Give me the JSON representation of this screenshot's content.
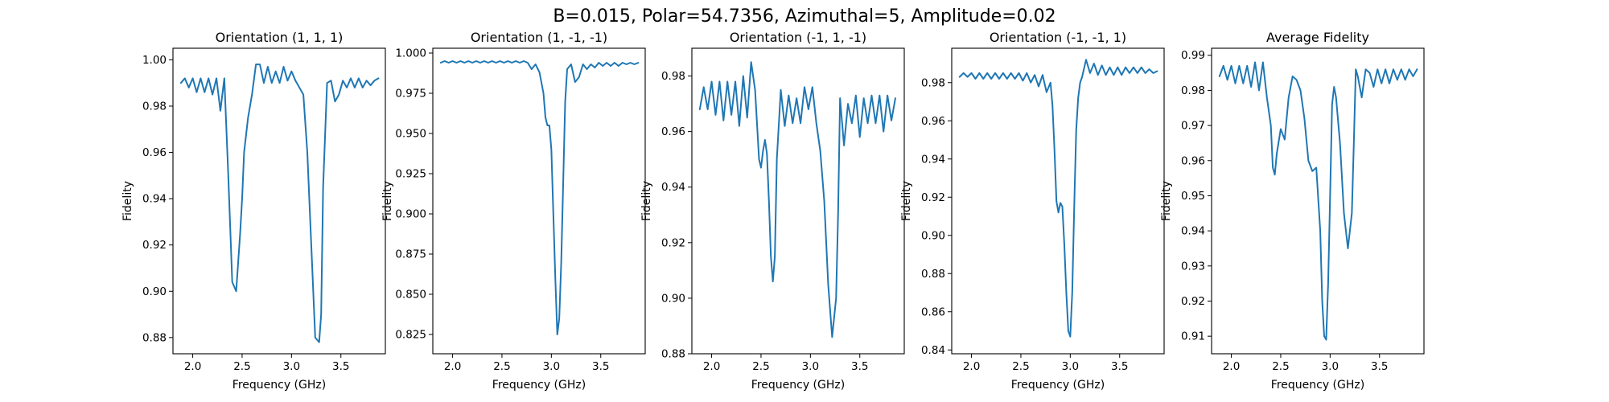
{
  "figure": {
    "suptitle": "B=0.015, Polar=54.7356, Azimuthal=5, Amplitude=0.02",
    "line_color": "#1f77b4"
  },
  "chart_data": [
    {
      "type": "line",
      "title": "Orientation (1, 1, 1)",
      "xlabel": "Frequency (GHz)",
      "ylabel": "Fidelity",
      "xlim": [
        1.8,
        3.95
      ],
      "ylim": [
        0.873,
        1.005
      ],
      "xticks": [
        "2.0",
        "2.5",
        "3.0",
        "3.5"
      ],
      "yticks": [
        "0.88",
        "0.90",
        "0.92",
        "0.94",
        "0.96",
        "0.98",
        "1.00"
      ],
      "x": [
        1.88,
        1.92,
        1.96,
        2.0,
        2.04,
        2.08,
        2.12,
        2.16,
        2.2,
        2.24,
        2.28,
        2.32,
        2.36,
        2.4,
        2.44,
        2.48,
        2.5,
        2.52,
        2.56,
        2.6,
        2.64,
        2.68,
        2.72,
        2.76,
        2.8,
        2.84,
        2.88,
        2.92,
        2.96,
        3.0,
        3.04,
        3.08,
        3.12,
        3.16,
        3.2,
        3.24,
        3.28,
        3.3,
        3.32,
        3.36,
        3.4,
        3.44,
        3.48,
        3.52,
        3.56,
        3.6,
        3.64,
        3.68,
        3.72,
        3.76,
        3.8,
        3.84,
        3.88
      ],
      "y": [
        0.99,
        0.992,
        0.988,
        0.992,
        0.986,
        0.992,
        0.986,
        0.992,
        0.985,
        0.992,
        0.978,
        0.992,
        0.95,
        0.904,
        0.9,
        0.925,
        0.94,
        0.96,
        0.975,
        0.985,
        0.998,
        0.998,
        0.99,
        0.997,
        0.99,
        0.995,
        0.99,
        0.997,
        0.991,
        0.995,
        0.991,
        0.988,
        0.985,
        0.96,
        0.92,
        0.88,
        0.878,
        0.89,
        0.945,
        0.99,
        0.991,
        0.982,
        0.985,
        0.991,
        0.988,
        0.992,
        0.988,
        0.992,
        0.988,
        0.991,
        0.989,
        0.991,
        0.992
      ]
    },
    {
      "type": "line",
      "title": "Orientation (1, -1, -1)",
      "xlabel": "Frequency (GHz)",
      "ylabel": "Fidelity",
      "xlim": [
        1.8,
        3.95
      ],
      "ylim": [
        0.813,
        1.003
      ],
      "xticks": [
        "2.0",
        "2.5",
        "3.0",
        "3.5"
      ],
      "yticks": [
        "0.825",
        "0.850",
        "0.875",
        "0.900",
        "0.925",
        "0.950",
        "0.975",
        "1.000"
      ],
      "x": [
        1.88,
        1.92,
        1.96,
        2.0,
        2.04,
        2.08,
        2.12,
        2.16,
        2.2,
        2.24,
        2.28,
        2.32,
        2.36,
        2.4,
        2.44,
        2.48,
        2.52,
        2.56,
        2.6,
        2.64,
        2.68,
        2.72,
        2.76,
        2.8,
        2.84,
        2.88,
        2.92,
        2.94,
        2.96,
        2.98,
        3.0,
        3.02,
        3.04,
        3.06,
        3.08,
        3.1,
        3.12,
        3.14,
        3.16,
        3.2,
        3.24,
        3.28,
        3.32,
        3.36,
        3.4,
        3.44,
        3.48,
        3.52,
        3.56,
        3.6,
        3.64,
        3.68,
        3.72,
        3.76,
        3.8,
        3.84,
        3.88
      ],
      "y": [
        0.994,
        0.995,
        0.994,
        0.995,
        0.994,
        0.995,
        0.994,
        0.995,
        0.994,
        0.995,
        0.994,
        0.995,
        0.994,
        0.995,
        0.994,
        0.995,
        0.994,
        0.995,
        0.994,
        0.995,
        0.994,
        0.995,
        0.994,
        0.99,
        0.993,
        0.988,
        0.975,
        0.96,
        0.955,
        0.955,
        0.94,
        0.9,
        0.86,
        0.825,
        0.835,
        0.87,
        0.92,
        0.97,
        0.99,
        0.993,
        0.982,
        0.985,
        0.993,
        0.99,
        0.993,
        0.991,
        0.994,
        0.992,
        0.994,
        0.992,
        0.994,
        0.992,
        0.994,
        0.993,
        0.994,
        0.993,
        0.994
      ]
    },
    {
      "type": "line",
      "title": "Orientation (-1, 1, -1)",
      "xlabel": "Frequency (GHz)",
      "ylabel": "Fidelity",
      "xlim": [
        1.8,
        3.95
      ],
      "ylim": [
        0.88,
        0.99
      ],
      "xticks": [
        "2.0",
        "2.5",
        "3.0",
        "3.5"
      ],
      "yticks": [
        "0.88",
        "0.90",
        "0.92",
        "0.94",
        "0.96",
        "0.98"
      ],
      "x": [
        1.88,
        1.92,
        1.96,
        2.0,
        2.04,
        2.08,
        2.12,
        2.16,
        2.2,
        2.24,
        2.28,
        2.32,
        2.36,
        2.4,
        2.44,
        2.48,
        2.5,
        2.52,
        2.54,
        2.56,
        2.58,
        2.6,
        2.62,
        2.64,
        2.66,
        2.7,
        2.74,
        2.78,
        2.82,
        2.86,
        2.9,
        2.94,
        2.98,
        3.02,
        3.06,
        3.1,
        3.14,
        3.18,
        3.22,
        3.26,
        3.28,
        3.3,
        3.34,
        3.38,
        3.42,
        3.46,
        3.5,
        3.54,
        3.58,
        3.62,
        3.66,
        3.7,
        3.74,
        3.78,
        3.82,
        3.86
      ],
      "y": [
        0.968,
        0.976,
        0.968,
        0.978,
        0.966,
        0.978,
        0.964,
        0.978,
        0.966,
        0.978,
        0.962,
        0.98,
        0.965,
        0.985,
        0.975,
        0.95,
        0.947,
        0.953,
        0.957,
        0.952,
        0.935,
        0.915,
        0.906,
        0.915,
        0.95,
        0.975,
        0.962,
        0.973,
        0.963,
        0.972,
        0.963,
        0.976,
        0.968,
        0.976,
        0.963,
        0.953,
        0.935,
        0.905,
        0.886,
        0.9,
        0.93,
        0.972,
        0.955,
        0.97,
        0.963,
        0.973,
        0.958,
        0.972,
        0.963,
        0.973,
        0.963,
        0.973,
        0.96,
        0.973,
        0.964,
        0.972
      ]
    },
    {
      "type": "line",
      "title": "Orientation (-1, -1, 1)",
      "xlabel": "Frequency (GHz)",
      "ylabel": "Fidelity",
      "xlim": [
        1.8,
        3.95
      ],
      "ylim": [
        0.838,
        0.998
      ],
      "xticks": [
        "2.0",
        "2.5",
        "3.0",
        "3.5"
      ],
      "yticks": [
        "0.84",
        "0.86",
        "0.88",
        "0.90",
        "0.92",
        "0.94",
        "0.96",
        "0.98"
      ],
      "x": [
        1.88,
        1.92,
        1.96,
        2.0,
        2.04,
        2.08,
        2.12,
        2.16,
        2.2,
        2.24,
        2.28,
        2.32,
        2.36,
        2.4,
        2.44,
        2.48,
        2.52,
        2.56,
        2.6,
        2.64,
        2.68,
        2.72,
        2.76,
        2.8,
        2.82,
        2.84,
        2.86,
        2.88,
        2.9,
        2.92,
        2.94,
        2.96,
        2.98,
        3.0,
        3.02,
        3.04,
        3.06,
        3.08,
        3.1,
        3.12,
        3.16,
        3.2,
        3.24,
        3.28,
        3.32,
        3.36,
        3.4,
        3.44,
        3.48,
        3.52,
        3.56,
        3.6,
        3.64,
        3.68,
        3.72,
        3.76,
        3.8,
        3.84,
        3.88
      ],
      "y": [
        0.983,
        0.985,
        0.983,
        0.985,
        0.982,
        0.985,
        0.982,
        0.985,
        0.982,
        0.985,
        0.982,
        0.985,
        0.982,
        0.985,
        0.982,
        0.985,
        0.981,
        0.985,
        0.98,
        0.984,
        0.978,
        0.984,
        0.975,
        0.98,
        0.968,
        0.945,
        0.918,
        0.912,
        0.917,
        0.915,
        0.895,
        0.87,
        0.85,
        0.847,
        0.87,
        0.915,
        0.955,
        0.972,
        0.98,
        0.983,
        0.992,
        0.985,
        0.99,
        0.984,
        0.989,
        0.984,
        0.988,
        0.984,
        0.988,
        0.984,
        0.988,
        0.985,
        0.988,
        0.985,
        0.988,
        0.985,
        0.987,
        0.985,
        0.986
      ]
    },
    {
      "type": "line",
      "title": "Average Fidelity",
      "xlabel": "Frequency (GHz)",
      "ylabel": "Fidelity",
      "xlim": [
        1.8,
        3.95
      ],
      "ylim": [
        0.905,
        0.992
      ],
      "xticks": [
        "2.0",
        "2.5",
        "3.0",
        "3.5"
      ],
      "yticks": [
        "0.91",
        "0.92",
        "0.93",
        "0.94",
        "0.95",
        "0.96",
        "0.97",
        "0.98",
        "0.99"
      ],
      "x": [
        1.88,
        1.92,
        1.96,
        2.0,
        2.04,
        2.08,
        2.12,
        2.16,
        2.2,
        2.24,
        2.28,
        2.32,
        2.36,
        2.4,
        2.42,
        2.44,
        2.46,
        2.5,
        2.54,
        2.58,
        2.62,
        2.66,
        2.7,
        2.74,
        2.78,
        2.82,
        2.86,
        2.9,
        2.92,
        2.94,
        2.96,
        2.98,
        3.0,
        3.02,
        3.04,
        3.06,
        3.1,
        3.14,
        3.18,
        3.22,
        3.24,
        3.26,
        3.28,
        3.32,
        3.36,
        3.4,
        3.44,
        3.48,
        3.52,
        3.56,
        3.6,
        3.64,
        3.68,
        3.72,
        3.76,
        3.8,
        3.84,
        3.88
      ],
      "y": [
        0.984,
        0.987,
        0.983,
        0.987,
        0.982,
        0.987,
        0.982,
        0.987,
        0.981,
        0.988,
        0.98,
        0.988,
        0.978,
        0.97,
        0.958,
        0.956,
        0.962,
        0.969,
        0.966,
        0.978,
        0.984,
        0.983,
        0.98,
        0.972,
        0.96,
        0.957,
        0.958,
        0.94,
        0.92,
        0.91,
        0.909,
        0.925,
        0.95,
        0.976,
        0.981,
        0.978,
        0.965,
        0.945,
        0.935,
        0.945,
        0.965,
        0.986,
        0.984,
        0.978,
        0.986,
        0.985,
        0.981,
        0.986,
        0.982,
        0.986,
        0.982,
        0.986,
        0.983,
        0.986,
        0.983,
        0.986,
        0.984,
        0.986
      ]
    }
  ]
}
